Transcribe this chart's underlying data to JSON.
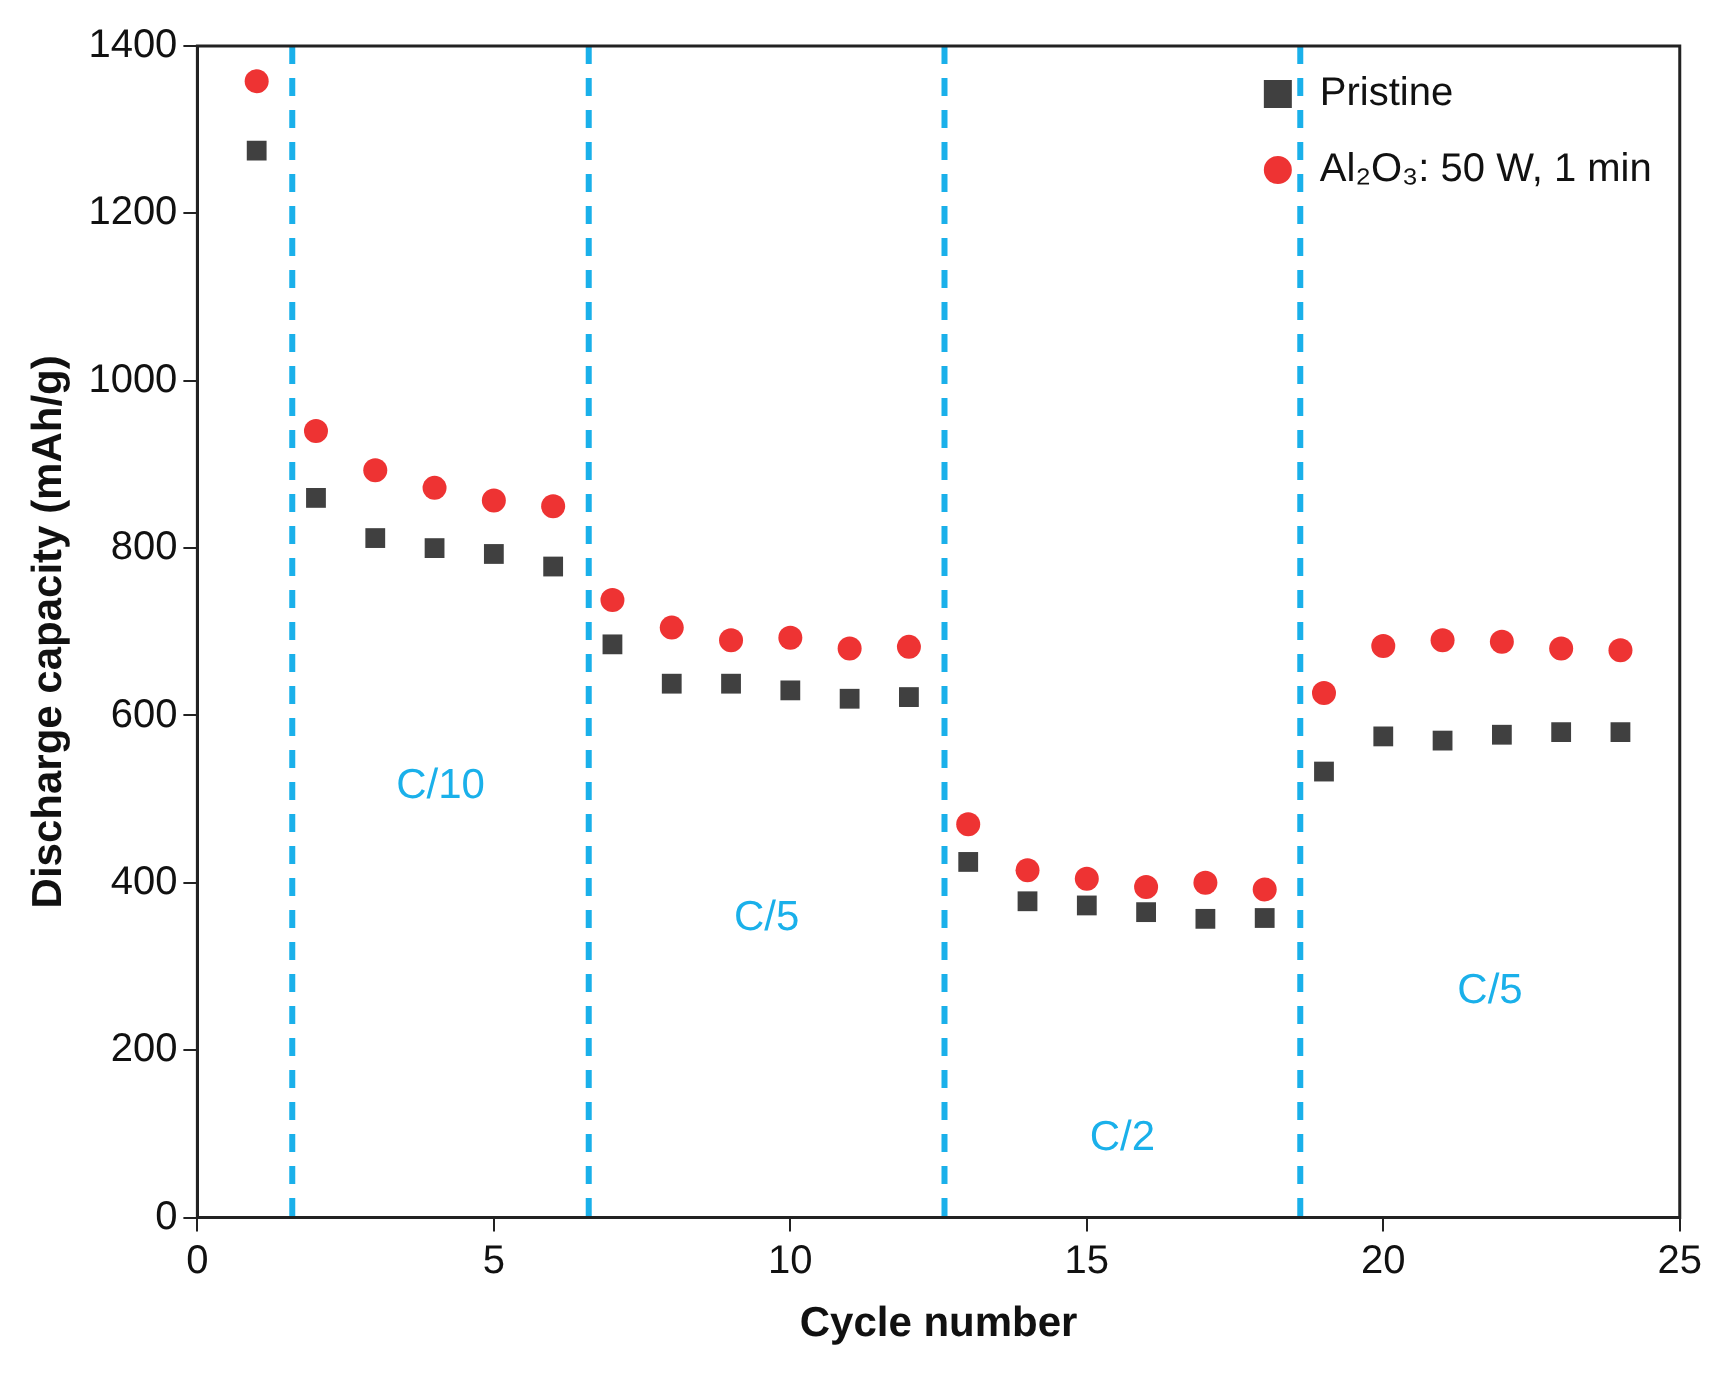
{
  "chart_data": {
    "type": "scatter",
    "xlabel": "Cycle number",
    "ylabel": "Discharge capacity (mAh/g)",
    "x": [
      1,
      2,
      3,
      4,
      5,
      6,
      7,
      8,
      9,
      10,
      11,
      12,
      13,
      14,
      15,
      16,
      17,
      18,
      19,
      20,
      21,
      22,
      23,
      24
    ],
    "series": [
      {
        "name": "Pristine",
        "color": "#404040",
        "marker": "square",
        "values": [
          1275,
          860,
          812,
          800,
          793,
          778,
          685,
          638,
          638,
          630,
          620,
          622,
          425,
          378,
          373,
          365,
          357,
          358,
          533,
          575,
          570,
          577,
          580,
          580
        ]
      },
      {
        "name": "Al₂O₃: 50 W, 1 min",
        "color": "#ee3333",
        "marker": "circle",
        "values": [
          1358,
          940,
          893,
          872,
          857,
          850,
          738,
          705,
          690,
          693,
          680,
          682,
          470,
          415,
          405,
          395,
          400,
          392,
          627,
          683,
          690,
          688,
          680,
          678
        ]
      }
    ],
    "xlim": [
      0,
      25
    ],
    "xticks": [
      0,
      5,
      10,
      15,
      20,
      25
    ],
    "ylim": [
      0,
      1400
    ],
    "yticks": [
      0,
      200,
      400,
      600,
      800,
      1000,
      1200,
      1400
    ],
    "grid": false,
    "legend": "top right",
    "ref_lines": [
      {
        "axis": "x",
        "value": 1.6,
        "color": "#1ab0ea",
        "line_style": "dashed"
      },
      {
        "axis": "x",
        "value": 6.6,
        "color": "#1ab0ea",
        "line_style": "dashed"
      },
      {
        "axis": "x",
        "value": 12.6,
        "color": "#1ab0ea",
        "line_style": "dashed"
      },
      {
        "axis": "x",
        "value": 18.6,
        "color": "#1ab0ea",
        "line_style": "dashed"
      }
    ],
    "annotations": [
      "C/10",
      "C/5",
      "C/2",
      "C/5"
    ]
  }
}
